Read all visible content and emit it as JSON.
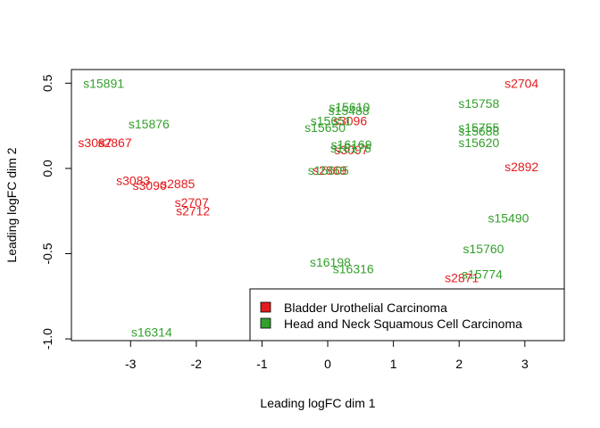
{
  "chart_data": {
    "type": "scatter",
    "title": "",
    "xlabel": "Leading logFC dim 1",
    "ylabel": "Leading logFC dim 2",
    "xlim": [
      -3.9,
      3.6
    ],
    "ylim": [
      -1.01,
      0.58
    ],
    "x_ticks": [
      -3,
      -2,
      -1,
      0,
      1,
      2,
      3
    ],
    "y_ticks": [
      -1.0,
      -0.5,
      0.0,
      0.5
    ],
    "x_tick_labels": [
      "-3",
      "-2",
      "-1",
      "0",
      "1",
      "2",
      "3"
    ],
    "y_tick_labels": [
      "-1.0",
      "-0.5",
      "0.0",
      "0.5"
    ],
    "grid": false,
    "legend_placement": "bottom-right",
    "series": [
      {
        "name": "Bladder Urothelial Carcinoma",
        "color": "#e41a1c",
        "points": [
          {
            "label": "s2704",
            "x": 2.95,
            "y": 0.5
          },
          {
            "label": "s3096",
            "x": 0.34,
            "y": 0.28
          },
          {
            "label": "s3087",
            "x": -3.54,
            "y": 0.15
          },
          {
            "label": "s2867",
            "x": -3.24,
            "y": 0.15
          },
          {
            "label": "s2892",
            "x": 2.95,
            "y": 0.01
          },
          {
            "label": "s3083",
            "x": -2.96,
            "y": -0.07
          },
          {
            "label": "s3090",
            "x": -2.71,
            "y": -0.1
          },
          {
            "label": "s2885",
            "x": -2.28,
            "y": -0.09
          },
          {
            "label": "s2707",
            "x": -2.07,
            "y": -0.2
          },
          {
            "label": "s2712",
            "x": -2.05,
            "y": -0.25
          },
          {
            "label": "s3097",
            "x": 0.36,
            "y": 0.11
          },
          {
            "label": "s2869",
            "x": 0.03,
            "y": -0.01
          },
          {
            "label": "s2871",
            "x": 2.04,
            "y": -0.64
          }
        ]
      },
      {
        "name": "Head and Neck Squamous Cell Carcinoma",
        "color": "#33a02c",
        "points": [
          {
            "label": "s15891",
            "x": -3.41,
            "y": 0.5
          },
          {
            "label": "s15876",
            "x": -2.72,
            "y": 0.26
          },
          {
            "label": "s15610",
            "x": 0.33,
            "y": 0.36
          },
          {
            "label": "s15488",
            "x": 0.32,
            "y": 0.34
          },
          {
            "label": "s15650",
            "x": -0.04,
            "y": 0.24
          },
          {
            "label": "s15651",
            "x": 0.05,
            "y": 0.28
          },
          {
            "label": "s16169",
            "x": 0.36,
            "y": 0.14
          },
          {
            "label": "s16176",
            "x": 0.35,
            "y": 0.12
          },
          {
            "label": "s15605",
            "x": 0.01,
            "y": -0.01
          },
          {
            "label": "s15758",
            "x": 2.3,
            "y": 0.38
          },
          {
            "label": "s15755",
            "x": 2.3,
            "y": 0.24
          },
          {
            "label": "s15688",
            "x": 2.3,
            "y": 0.22
          },
          {
            "label": "s15620",
            "x": 2.3,
            "y": 0.15
          },
          {
            "label": "s15490",
            "x": 2.75,
            "y": -0.29
          },
          {
            "label": "s15760",
            "x": 2.37,
            "y": -0.47
          },
          {
            "label": "s16198",
            "x": 0.04,
            "y": -0.55
          },
          {
            "label": "s16316",
            "x": 0.39,
            "y": -0.59
          },
          {
            "label": "s15774",
            "x": 2.35,
            "y": -0.62
          },
          {
            "label": "s16314",
            "x": -2.68,
            "y": -0.96
          }
        ]
      }
    ]
  }
}
